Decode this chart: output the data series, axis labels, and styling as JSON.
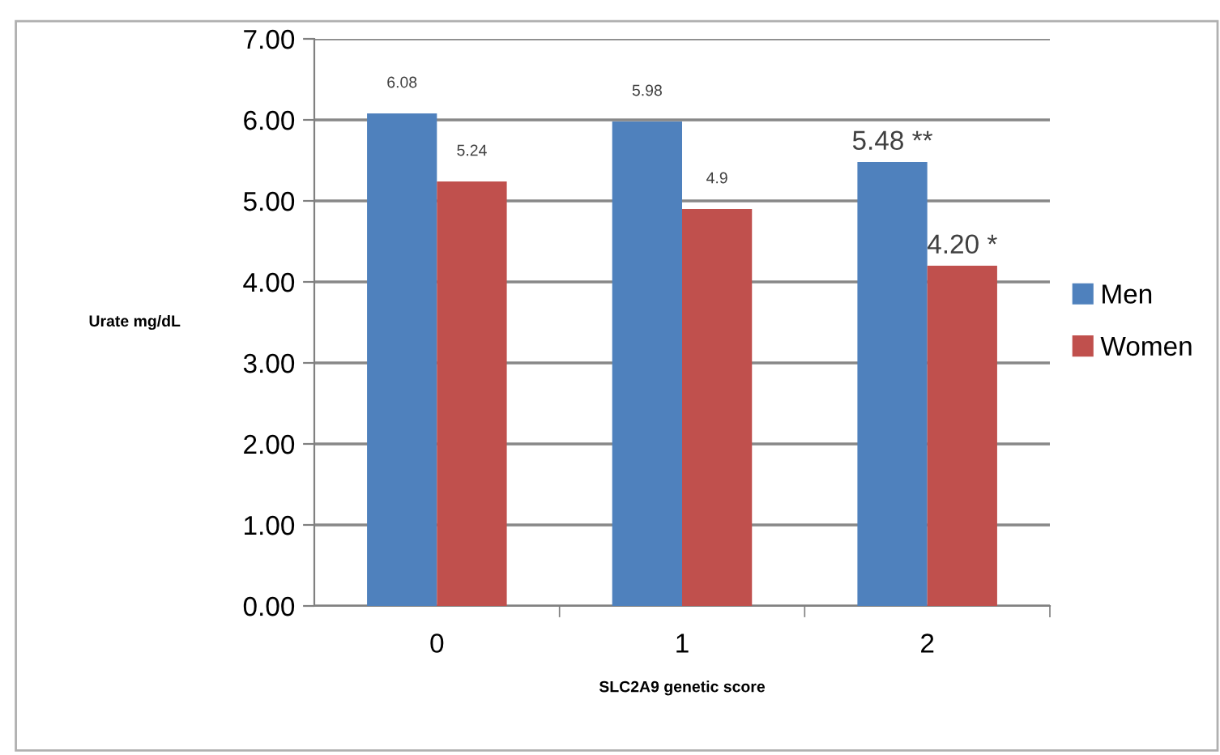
{
  "chart_data": {
    "type": "bar",
    "xlabel": "SLC2A9 genetic score",
    "ylabel": "Urate mg/dL",
    "categories": [
      "0",
      "1",
      "2"
    ],
    "series": [
      {
        "name": "Men",
        "color": "#4f81bd",
        "values": [
          6.08,
          5.98,
          5.48
        ],
        "value_labels": [
          "6.08",
          "5.98",
          "5.48 **"
        ]
      },
      {
        "name": "Women",
        "color": "#c0504d",
        "values": [
          5.24,
          4.9,
          4.2
        ],
        "value_labels": [
          "5.24",
          "4.9",
          "4.20 *"
        ]
      }
    ],
    "ylim": [
      0,
      7
    ],
    "yticks": [
      {
        "value": 0,
        "label": "0.00"
      },
      {
        "value": 1,
        "label": "1.00"
      },
      {
        "value": 2,
        "label": "2.00"
      },
      {
        "value": 3,
        "label": "3.00"
      },
      {
        "value": 4,
        "label": "4.00"
      },
      {
        "value": 5,
        "label": "5.00"
      },
      {
        "value": 6,
        "label": "6.00"
      },
      {
        "value": 7,
        "label": "7.00"
      }
    ],
    "grid": "y",
    "legend": "right"
  }
}
